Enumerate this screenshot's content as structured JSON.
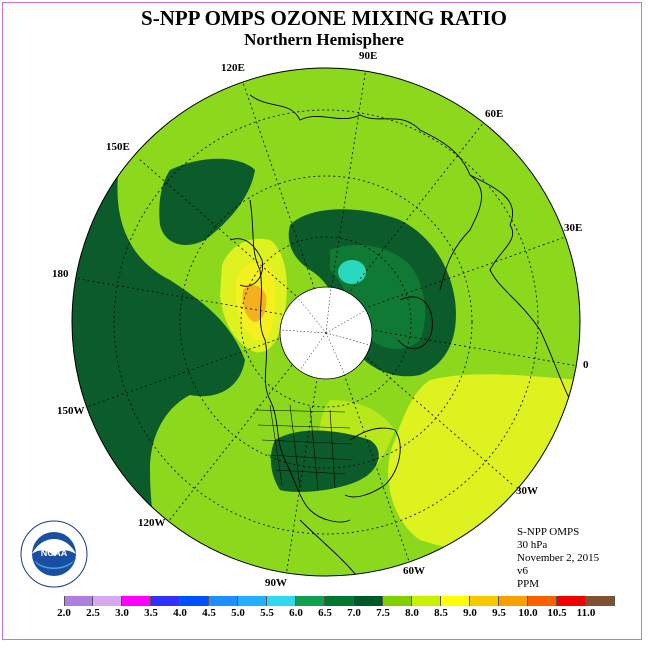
{
  "title": "S-NPP OMPS OZONE MIXING RATIO",
  "subtitle": "Northern Hemisphere",
  "longitude_labels": {
    "lon_90e": "90E",
    "lon_60e": "60E",
    "lon_30e": "30E",
    "lon_0": "0",
    "lon_30w": "30W",
    "lon_60w": "60W",
    "lon_90w": "90W",
    "lon_120w": "120W",
    "lon_150w": "150W",
    "lon_180": "180",
    "lon_150e": "150E",
    "lon_120e": "120E"
  },
  "info": {
    "instrument": "S-NPP OMPS",
    "level": "30 hPa",
    "date": "November 2, 2015",
    "version": "v6",
    "units": "PPM"
  },
  "logo_text": "NOAA",
  "colorbar": {
    "labels": [
      "2.0",
      "2.5",
      "3.0",
      "3.5",
      "4.0",
      "4.5",
      "5.0",
      "5.5",
      "6.0",
      "6.5",
      "7.0",
      "7.5",
      "8.0",
      "8.5",
      "9.0",
      "9.5",
      "10.0",
      "10.5",
      "11.0"
    ],
    "colors": [
      "#b07de0",
      "#d8a8f0",
      "#ff00ff",
      "#3030ff",
      "#0050ff",
      "#1e8fff",
      "#20b0ff",
      "#30d8f0",
      "#10a050",
      "#007830",
      "#005a28",
      "#80d000",
      "#c8f000",
      "#ffff00",
      "#f8c800",
      "#f8a000",
      "#f86000",
      "#f00000",
      "#805030"
    ]
  },
  "colors": {
    "dark_green": "#0b5c2a",
    "medium_green": "#0e7a34",
    "light_green": "#8cd81c",
    "lime": "#c0ec18",
    "yellow_green": "#ddf21e",
    "yellow": "#f5f020",
    "orange": "#f5b020",
    "teal": "#2ad8c0",
    "frame": "#d070d0"
  }
}
